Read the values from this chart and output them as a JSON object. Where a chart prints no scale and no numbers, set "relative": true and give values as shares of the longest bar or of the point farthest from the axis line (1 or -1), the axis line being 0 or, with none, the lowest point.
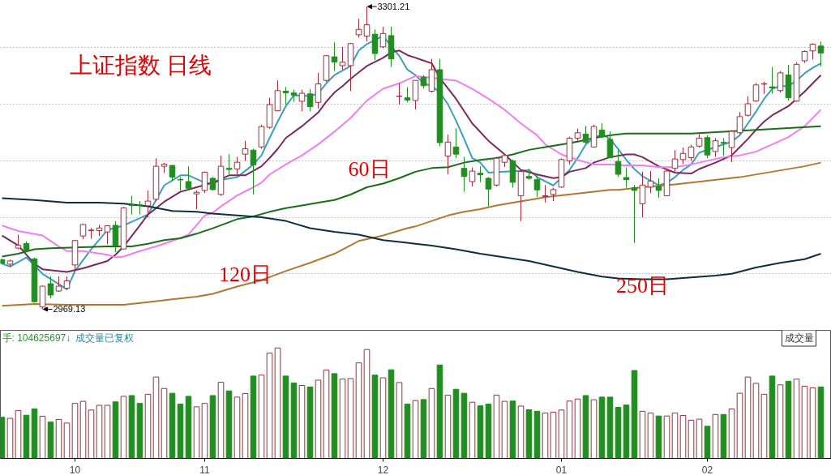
{
  "chart_data": [
    {
      "type": "candlestick",
      "title": "上证指数 日线",
      "categories": [
        null,
        null,
        null,
        null,
        null,
        null,
        null,
        null,
        null,
        "10",
        null,
        null,
        null,
        null,
        null,
        null,
        null,
        null,
        null,
        null,
        null,
        null,
        null,
        null,
        null,
        "11",
        null,
        null,
        null,
        null,
        null,
        null,
        null,
        null,
        null,
        null,
        null,
        null,
        null,
        null,
        null,
        null,
        null,
        null,
        null,
        null,
        null,
        "12",
        null,
        null,
        null,
        null,
        null,
        null,
        null,
        null,
        null,
        null,
        null,
        null,
        null,
        null,
        null,
        null,
        null,
        null,
        null,
        null,
        null,
        "01",
        null,
        null,
        null,
        null,
        null,
        null,
        null,
        null,
        null,
        null,
        null,
        null,
        null,
        null,
        null,
        null,
        null,
        "02",
        null,
        null,
        null,
        null,
        null,
        null,
        null,
        null,
        null,
        null,
        null,
        null,
        null,
        null
      ],
      "ohlc": [
        [
          3023.6,
          3024.4,
          3018.6,
          3019.4
        ],
        [
          3018.6,
          3023.6,
          3015.6,
          3022.1
        ],
        [
          3036.2,
          3051.0,
          3034.8,
          3039.2
        ],
        [
          3041.2,
          3043.6,
          3031.8,
          3033.3
        ],
        [
          3024.4,
          3025.9,
          2976.5,
          2977.4
        ],
        [
          2971.5,
          2995.0,
          2969.13,
          2994.4
        ],
        [
          2997.1,
          3005.3,
          2981.2,
          2984.7
        ],
        [
          2989.1,
          3005.3,
          2988.2,
          2994.4
        ],
        [
          2992.1,
          3005.3,
          2991.2,
          3000.3
        ],
        [
          3017.7,
          3045.1,
          3011.2,
          3044.5
        ],
        [
          3049.5,
          3062.7,
          3045.9,
          3062.1
        ],
        [
          3055.4,
          3058.3,
          3046.5,
          3056.0
        ],
        [
          3055.4,
          3061.8,
          3049.5,
          3058.3
        ],
        [
          3053.9,
          3061.2,
          3040.6,
          3060.7
        ],
        [
          3061.2,
          3065.7,
          3031.8,
          3039.2
        ],
        [
          3035.3,
          3081.3,
          3034.8,
          3080.4
        ],
        [
          3083.6,
          3093.6,
          3073.0,
          3083.0
        ],
        [
          3083.6,
          3087.8,
          3073.0,
          3083.0
        ],
        [
          3082.7,
          3099.5,
          3070.1,
          3087.8
        ],
        [
          3089.8,
          3134.8,
          3087.8,
          3126.0
        ],
        [
          3126.0,
          3129.8,
          3118.7,
          3128.2
        ],
        [
          3126.9,
          3127.5,
          3109.8,
          3114.2
        ],
        [
          3111.6,
          3114.2,
          3099.5,
          3111.0
        ],
        [
          3109.2,
          3126.0,
          3101.0,
          3101.9
        ],
        [
          3095.7,
          3099.5,
          3078.9,
          3097.5
        ],
        [
          3099.5,
          3120.1,
          3096.6,
          3119.5
        ],
        [
          3112.8,
          3114.2,
          3099.5,
          3100.4
        ],
        [
          3095.1,
          3137.8,
          3093.6,
          3126.0
        ],
        [
          3123.7,
          3139.3,
          3117.2,
          3122.5
        ],
        [
          3123.1,
          3136.3,
          3117.2,
          3130.4
        ],
        [
          3139.3,
          3154.0,
          3131.9,
          3145.2
        ],
        [
          3143.7,
          3145.2,
          3095.1,
          3127.5
        ],
        [
          3147.2,
          3171.6,
          3145.2,
          3169.6
        ],
        [
          3168.7,
          3201.1,
          3167.2,
          3193.7
        ],
        [
          3186.9,
          3220.2,
          3186.4,
          3209.0
        ],
        [
          3208.4,
          3212.9,
          3193.7,
          3206.7
        ],
        [
          3206.4,
          3209.9,
          3196.7,
          3204.0
        ],
        [
          3197.3,
          3209.9,
          3186.4,
          3206.1
        ],
        [
          3205.5,
          3210.8,
          3186.4,
          3191.4
        ],
        [
          3196.1,
          3228.5,
          3189.3,
          3216.4
        ],
        [
          3220.2,
          3248.2,
          3218.8,
          3247.3
        ],
        [
          3246.1,
          3262.0,
          3230.5,
          3240.2
        ],
        [
          3236.4,
          3257.0,
          3232.0,
          3240.2
        ],
        [
          3236.4,
          3261.4,
          3208.4,
          3260.6
        ],
        [
          3270.3,
          3287.9,
          3267.3,
          3276.2
        ],
        [
          3268.8,
          3301.21,
          3262.9,
          3281.2
        ],
        [
          3270.9,
          3276.2,
          3242.3,
          3249.7
        ],
        [
          3257.0,
          3279.1,
          3255.6,
          3271.7
        ],
        [
          3269.4,
          3279.1,
          3234.9,
          3243.8
        ],
        [
          3202.6,
          3217.3,
          3193.7,
          3203.1
        ],
        [
          3201.1,
          3212.9,
          3196.1,
          3198.7
        ],
        [
          3198.1,
          3220.2,
          3188.4,
          3220.2
        ],
        [
          3223.8,
          3226.1,
          3211.4,
          3214.3
        ],
        [
          3208.4,
          3243.8,
          3207.0,
          3232.0
        ],
        [
          3232.0,
          3243.8,
          3148.1,
          3151.9
        ],
        [
          3137.2,
          3160.8,
          3117.2,
          3152.5
        ],
        [
          3147.2,
          3167.8,
          3134.8,
          3139.3
        ],
        [
          3123.7,
          3136.3,
          3098.1,
          3114.8
        ],
        [
          3109.2,
          3124.5,
          3103.9,
          3120.7
        ],
        [
          3118.4,
          3126.0,
          3108.4,
          3116.6
        ],
        [
          3112.8,
          3114.2,
          3081.9,
          3101.0
        ],
        [
          3105.4,
          3136.3,
          3103.9,
          3134.8
        ],
        [
          3130.4,
          3139.3,
          3125.4,
          3137.8
        ],
        [
          3131.9,
          3133.4,
          3102.5,
          3108.4
        ],
        [
          3093.6,
          3121.6,
          3065.7,
          3120.1
        ],
        [
          3114.8,
          3123.1,
          3111.3,
          3112.8
        ],
        [
          3111.3,
          3117.2,
          3092.2,
          3100.1
        ],
        [
          3092.7,
          3105.4,
          3086.3,
          3093.6
        ],
        [
          3095.1,
          3102.5,
          3087.8,
          3100.4
        ],
        [
          3103.1,
          3134.8,
          3102.5,
          3133.4
        ],
        [
          3131.9,
          3158.4,
          3128.2,
          3156.9
        ],
        [
          3156.9,
          3167.2,
          3154.0,
          3162.8
        ],
        [
          3161.3,
          3170.2,
          3151.0,
          3152.5
        ],
        [
          3147.2,
          3171.6,
          3146.6,
          3169.6
        ],
        [
          3165.8,
          3173.1,
          3156.9,
          3158.4
        ],
        [
          3155.5,
          3164.3,
          3134.8,
          3135.4
        ],
        [
          3131.3,
          3143.7,
          3114.2,
          3117.2
        ],
        [
          3113.7,
          3124.5,
          3102.5,
          3111.3
        ],
        [
          3102.5,
          3105.4,
          3042.1,
          3099.5
        ],
        [
          3084.8,
          3120.1,
          3070.1,
          3105.4
        ],
        [
          3103.1,
          3120.7,
          3096.6,
          3109.8
        ],
        [
          3103.9,
          3112.8,
          3091.3,
          3099.5
        ],
        [
          3093.6,
          3123.1,
          3093.0,
          3120.7
        ],
        [
          3123.7,
          3143.7,
          3120.1,
          3134.0
        ],
        [
          3133.4,
          3146.6,
          3128.2,
          3140.1
        ],
        [
          3135.4,
          3149.6,
          3131.9,
          3147.2
        ],
        [
          3148.1,
          3161.3,
          3146.6,
          3156.9
        ],
        [
          3157.5,
          3159.9,
          3134.8,
          3138.4
        ],
        [
          3142.2,
          3156.9,
          3136.3,
          3154.0
        ],
        [
          3152.2,
          3156.9,
          3137.8,
          3151.3
        ],
        [
          3146.6,
          3165.8,
          3130.4,
          3164.3
        ],
        [
          3162.8,
          3185.5,
          3161.3,
          3180.5
        ],
        [
          3181.9,
          3202.6,
          3180.5,
          3194.6
        ],
        [
          3197.6,
          3217.3,
          3196.7,
          3215.2
        ],
        [
          3216.1,
          3218.8,
          3205.5,
          3216.7
        ],
        [
          3213.2,
          3234.9,
          3205.5,
          3212.0
        ],
        [
          3209.0,
          3230.5,
          3207.0,
          3228.5
        ],
        [
          3226.1,
          3237.3,
          3198.1,
          3201.1
        ],
        [
          3197.6,
          3240.2,
          3196.7,
          3237.9
        ],
        [
          3241.7,
          3253.2,
          3239.4,
          3252.0
        ],
        [
          3252.6,
          3260.9,
          3243.2,
          3260.0
        ],
        [
          3257.9,
          3262.9,
          3235.5,
          3250.3
        ]
      ],
      "colors": [
        "#1f8f1f",
        "#a52a3a",
        "#a52a3a",
        "#1f8f1f",
        "#1f8f1f",
        "#a52a3a",
        "#1f8f1f",
        "#a52a3a",
        "#a52a3a",
        "#a52a3a",
        "#a52a3a",
        "#a52a3a",
        "#a52a3a",
        "#a52a3a",
        "#1f8f1f",
        "#a52a3a",
        "#1f8f1f",
        "#1f8f1f",
        "#a52a3a",
        "#a52a3a",
        "#a52a3a",
        "#1f8f1f",
        "#1f8f1f",
        "#1f8f1f",
        "#a52a3a",
        "#a52a3a",
        "#1f8f1f",
        "#a52a3a",
        "#1f8f1f",
        "#a52a3a",
        "#a52a3a",
        "#1f8f1f",
        "#a52a3a",
        "#a52a3a",
        "#a52a3a",
        "#1f8f1f",
        "#1f8f1f",
        "#a52a3a",
        "#1f8f1f",
        "#a52a3a",
        "#a52a3a",
        "#1f8f1f",
        "#a52a3a",
        "#a52a3a",
        "#a52a3a",
        "#a52a3a",
        "#1f8f1f",
        "#a52a3a",
        "#1f8f1f",
        "#a52a3a",
        "#1f8f1f",
        "#a52a3a",
        "#1f8f1f",
        "#a52a3a",
        "#1f8f1f",
        "#a52a3a",
        "#1f8f1f",
        "#1f8f1f",
        "#a52a3a",
        "#1f8f1f",
        "#1f8f1f",
        "#a52a3a",
        "#a52a3a",
        "#1f8f1f",
        "#a52a3a",
        "#1f8f1f",
        "#1f8f1f",
        "#a52a3a",
        "#a52a3a",
        "#a52a3a",
        "#a52a3a",
        "#a52a3a",
        "#1f8f1f",
        "#a52a3a",
        "#1f8f1f",
        "#1f8f1f",
        "#1f8f1f",
        "#1f8f1f",
        "#1f8f1f",
        "#a52a3a",
        "#a52a3a",
        "#1f8f1f",
        "#a52a3a",
        "#a52a3a",
        "#a52a3a",
        "#a52a3a",
        "#a52a3a",
        "#1f8f1f",
        "#a52a3a",
        "#1f8f1f",
        "#a52a3a",
        "#a52a3a",
        "#a52a3a",
        "#a52a3a",
        "#a52a3a",
        "#1f8f1f",
        "#a52a3a",
        "#1f8f1f",
        "#a52a3a",
        "#a52a3a",
        "#a52a3a",
        "#1f8f1f"
      ],
      "series": [
        {
          "type": "line",
          "color": "#3a9fc0",
          "values": [
            3019,
            3016,
            null,
            3026,
            null,
            3008,
            null,
            null,
            2991,
            3011,
            null,
            3035,
            null,
            3056,
            null,
            3061,
            null,
            3069,
            3073,
            null,
            3105,
            null,
            3116,
            3116,
            null,
            3108,
            3107,
            3111,
            null,
            3114,
            null,
            3128,
            3138,
            3157,
            3175,
            3192,
            3204,
            null,
            3203,
            3206,
            3217,
            3226,
            null,
            3236,
            3253,
            3260,
            null,
            3269,
            null,
            3247,
            3232,
            3226,
            3217,
            3214,
            3207,
            3194,
            3176,
            3156,
            3135,
            3130,
            3119,
            null,
            3120,
            null,
            3121,
            3122,
            3114,
            null,
            3105,
            null,
            3122,
            3135,
            3150,
            3157,
            3161,
            3156,
            3145,
            3133,
            3123,
            3115,
            null,
            3105,
            3108,
            3114,
            3122,
            3128,
            3141,
            null,
            3147,
            null,
            3153,
            3160,
            3173,
            3186,
            3200,
            3211,
            3214,
            3214,
            3220,
            3228,
            3234,
            3239
          ]
        },
        {
          "type": "line",
          "color": "#7a2860",
          "values": [
            3050,
            null,
            3039,
            null,
            3019,
            3013,
            null,
            null,
            3010,
            null,
            3014,
            null,
            null,
            3022,
            3029,
            3038,
            null,
            3061,
            3073,
            null,
            3087,
            null,
            3098,
            null,
            3103,
            null,
            3108,
            null,
            3116,
            null,
            3116,
            null,
            3126,
            3135,
            3145,
            3157,
            null,
            3170,
            null,
            3185,
            3197,
            3207,
            3214,
            3222,
            3229,
            3236,
            null,
            3245,
            3251,
            3253,
            3248,
            null,
            3242,
            3239,
            3223,
            null,
            3200,
            null,
            3173,
            null,
            3154,
            null,
            3139,
            null,
            3122,
            null,
            3117,
            null,
            3113,
            3114,
            3120,
            null,
            3124,
            3130,
            null,
            3136,
            null,
            3139,
            3139,
            3136,
            null,
            3126,
            null,
            3119,
            null,
            3118,
            3123,
            null,
            3130,
            null,
            3138,
            3147,
            3156,
            3166,
            3175,
            3182,
            null,
            3192,
            3200,
            3208,
            3217,
            3226
          ]
        },
        {
          "type": "line",
          "color": "#f07ef0",
          "values": [
            3061,
            null,
            3055,
            null,
            null,
            3050,
            null,
            3038,
            3033,
            null,
            3033,
            null,
            null,
            3029,
            3026,
            3027,
            null,
            3033,
            null,
            3038,
            null,
            3044,
            null,
            3051,
            null,
            3072,
            3075,
            3082,
            null,
            3094,
            null,
            3103,
            3108,
            3117,
            null,
            3128,
            null,
            3138,
            null,
            3150,
            null,
            3164,
            null,
            3179,
            null,
            3198,
            null,
            3211,
            null,
            3217,
            null,
            3225,
            null,
            null,
            null,
            null,
            3220,
            null,
            3211,
            null,
            3200,
            null,
            3188,
            null,
            3173,
            null,
            3160,
            3150,
            null,
            3139,
            null,
            3133,
            null,
            3128,
            null,
            3128,
            null,
            3127,
            null,
            3127,
            null,
            3125,
            null,
            3125,
            null,
            3128,
            null,
            3132,
            null,
            3136,
            null,
            3138,
            null,
            3142,
            null,
            3150,
            null,
            3158,
            null,
            3170,
            null,
            3188
          ]
        },
        {
          "type": "line",
          "color": "#1a6e1a",
          "values": [
            3027,
            null,
            3030,
            null,
            3035,
            null,
            3036,
            null,
            null,
            null,
            null,
            null,
            null,
            3038,
            null,
            null,
            3038,
            null,
            3041,
            null,
            3045,
            null,
            3047,
            null,
            3052,
            null,
            3058,
            null,
            null,
            3068,
            null,
            3071,
            null,
            3076,
            null,
            3080,
            null,
            3083,
            null,
            3086,
            null,
            3089,
            null,
            3095,
            null,
            3103,
            null,
            3107,
            null,
            3113,
            null,
            3120,
            null,
            3124,
            null,
            3125,
            null,
            3130,
            null,
            3133,
            null,
            3135,
            null,
            3139,
            null,
            3144,
            null,
            3147,
            null,
            3150,
            null,
            3153,
            null,
            3157,
            null,
            3160,
            null,
            3162,
            null,
            null,
            null,
            3162,
            null,
            null,
            null,
            3162,
            null,
            null,
            null,
            3164,
            null,
            null,
            null,
            3166,
            null,
            null,
            null,
            3168,
            null,
            null,
            null,
            3170
          ]
        },
        {
          "type": "line",
          "color": "#b07830",
          "values": [
            2973,
            null,
            null,
            null,
            2975,
            null,
            null,
            null,
            2974,
            null,
            null,
            null,
            2974,
            null,
            null,
            2974,
            null,
            null,
            2977,
            null,
            null,
            2980,
            null,
            null,
            2983,
            null,
            2986,
            null,
            null,
            2994,
            null,
            null,
            3001,
            null,
            null,
            3011,
            null,
            null,
            3020,
            null,
            null,
            3030,
            null,
            null,
            3044,
            null,
            null,
            3050,
            null,
            null,
            3058,
            3060,
            null,
            3066,
            null,
            3072,
            null,
            3076,
            null,
            3079,
            null,
            3083,
            null,
            3086,
            null,
            3089,
            null,
            3092,
            null,
            3094,
            null,
            3096,
            null,
            3098,
            null,
            3100,
            3100,
            null,
            null,
            3103,
            null,
            null,
            null,
            3106,
            null,
            null,
            null,
            3110,
            null,
            null,
            null,
            3114,
            null,
            null,
            null,
            3120,
            null,
            null,
            null,
            3126,
            null,
            3130
          ]
        },
        {
          "type": "line",
          "color": "#0f2d40",
          "values": [
            3091,
            null,
            null,
            null,
            3089,
            null,
            null,
            null,
            3086,
            null,
            null,
            null,
            3086,
            null,
            null,
            3085,
            null,
            null,
            3082,
            null,
            null,
            3077,
            null,
            null,
            3076,
            null,
            3074,
            null,
            null,
            3072,
            null,
            null,
            3070,
            null,
            null,
            3066,
            null,
            null,
            3058,
            null,
            null,
            3054,
            null,
            null,
            3051,
            null,
            null,
            3045,
            null,
            null,
            3042,
            3041,
            null,
            3039,
            null,
            null,
            3035,
            null,
            null,
            3030,
            null,
            null,
            3026,
            null,
            null,
            3022,
            null,
            null,
            3016,
            null,
            null,
            3010,
            null,
            null,
            3005,
            null,
            3003,
            null,
            null,
            3002,
            null,
            null,
            3002,
            null,
            null,
            3004,
            null,
            null,
            3006,
            null,
            3008,
            null,
            null,
            3015,
            null,
            null,
            3020,
            null,
            null,
            3024,
            null,
            3030
          ]
        }
      ],
      "annotations": [
        "3301.21",
        "2969.13",
        "60日",
        "120日",
        "250日"
      ],
      "ylim": [
        2946,
        3308
      ],
      "yticks": [
        {
          "value": 3256,
          "label": null
        },
        {
          "value": 3194,
          "label": null
        },
        {
          "value": 3132,
          "label": null
        },
        {
          "value": 3070,
          "label": null
        },
        {
          "value": 3008,
          "label": null
        }
      ],
      "grid": "y",
      "tick_labels": false
    },
    {
      "type": "bar",
      "relative": true,
      "categories": [
        null,
        null,
        null,
        null,
        null,
        null,
        null,
        null,
        null,
        "10",
        null,
        null,
        null,
        null,
        null,
        null,
        null,
        null,
        null,
        null,
        null,
        null,
        null,
        null,
        null,
        "11",
        null,
        null,
        null,
        null,
        null,
        null,
        null,
        null,
        null,
        null,
        null,
        null,
        null,
        null,
        null,
        null,
        null,
        null,
        null,
        null,
        null,
        "12",
        null,
        null,
        null,
        null,
        null,
        null,
        null,
        null,
        null,
        null,
        null,
        null,
        null,
        null,
        null,
        null,
        null,
        null,
        null,
        null,
        null,
        "01",
        null,
        null,
        null,
        null,
        null,
        null,
        null,
        null,
        null,
        null,
        null,
        null,
        null,
        null,
        null,
        null,
        null,
        "02",
        null,
        null,
        null,
        null,
        null,
        null,
        null,
        null,
        null,
        null,
        null,
        null,
        null,
        null
      ],
      "values": [
        0.372,
        0.363,
        0.434,
        0.391,
        0.448,
        0.382,
        0.329,
        0.353,
        0.32,
        0.498,
        0.517,
        0.438,
        0.481,
        0.481,
        0.512,
        0.562,
        0.569,
        0.498,
        0.581,
        0.737,
        0.633,
        0.59,
        0.491,
        0.562,
        0.467,
        0.498,
        0.569,
        0.69,
        0.611,
        0.555,
        0.588,
        0.746,
        0.754,
        0.953,
        1,
        0.746,
        0.682,
        0.661,
        0.647,
        0.709,
        0.801,
        0.768,
        0.718,
        0.723,
        0.865,
        0.986,
        0.754,
        0.73,
        0.803,
        0.687,
        0.491,
        0.524,
        0.533,
        0.633,
        0.846,
        0.573,
        0.626,
        0.59,
        0.509,
        0.476,
        0.491,
        0.573,
        0.517,
        0.519,
        0.474,
        0.441,
        0.427,
        0.41,
        0.419,
        0.438,
        0.519,
        0.538,
        0.569,
        0.531,
        0.555,
        0.555,
        0.462,
        0.483,
        0.796,
        0.427,
        0.41,
        0.384,
        0.384,
        0.41,
        0.389,
        0.346,
        0.355,
        0.291,
        0.398,
        0.398,
        0.448,
        0.59,
        0.737,
        0.68,
        0.581,
        0.746,
        0.666,
        0.699,
        0.718,
        0.654,
        0.64,
        0.647
      ],
      "colors": [
        "#1f8f1f",
        "#a52a3a",
        "#a52a3a",
        "#1f8f1f",
        "#1f8f1f",
        "#a52a3a",
        "#1f8f1f",
        "#a52a3a",
        "#a52a3a",
        "#a52a3a",
        "#a52a3a",
        "#a52a3a",
        "#a52a3a",
        "#a52a3a",
        "#1f8f1f",
        "#a52a3a",
        "#1f8f1f",
        "#1f8f1f",
        "#a52a3a",
        "#a52a3a",
        "#a52a3a",
        "#1f8f1f",
        "#1f8f1f",
        "#1f8f1f",
        "#a52a3a",
        "#a52a3a",
        "#1f8f1f",
        "#a52a3a",
        "#1f8f1f",
        "#a52a3a",
        "#a52a3a",
        "#1f8f1f",
        "#a52a3a",
        "#a52a3a",
        "#a52a3a",
        "#1f8f1f",
        "#1f8f1f",
        "#a52a3a",
        "#1f8f1f",
        "#a52a3a",
        "#a52a3a",
        "#1f8f1f",
        "#a52a3a",
        "#a52a3a",
        "#a52a3a",
        "#a52a3a",
        "#1f8f1f",
        "#a52a3a",
        "#1f8f1f",
        "#a52a3a",
        "#1f8f1f",
        "#a52a3a",
        "#1f8f1f",
        "#a52a3a",
        "#1f8f1f",
        "#a52a3a",
        "#1f8f1f",
        "#1f8f1f",
        "#a52a3a",
        "#1f8f1f",
        "#1f8f1f",
        "#a52a3a",
        "#a52a3a",
        "#1f8f1f",
        "#a52a3a",
        "#1f8f1f",
        "#1f8f1f",
        "#a52a3a",
        "#a52a3a",
        "#a52a3a",
        "#a52a3a",
        "#a52a3a",
        "#1f8f1f",
        "#a52a3a",
        "#1f8f1f",
        "#1f8f1f",
        "#1f8f1f",
        "#1f8f1f",
        "#1f8f1f",
        "#a52a3a",
        "#a52a3a",
        "#1f8f1f",
        "#a52a3a",
        "#a52a3a",
        "#a52a3a",
        "#a52a3a",
        "#a52a3a",
        "#1f8f1f",
        "#a52a3a",
        "#1f8f1f",
        "#a52a3a",
        "#a52a3a",
        "#a52a3a",
        "#a52a3a",
        "#a52a3a",
        "#1f8f1f",
        "#a52a3a",
        "#1f8f1f",
        "#a52a3a",
        "#a52a3a",
        "#a52a3a",
        "#1f8f1f"
      ],
      "annotations": [
        "手: 104625697↓",
        "成交量已复权",
        "成交量"
      ],
      "tick_labels": "x"
    }
  ]
}
